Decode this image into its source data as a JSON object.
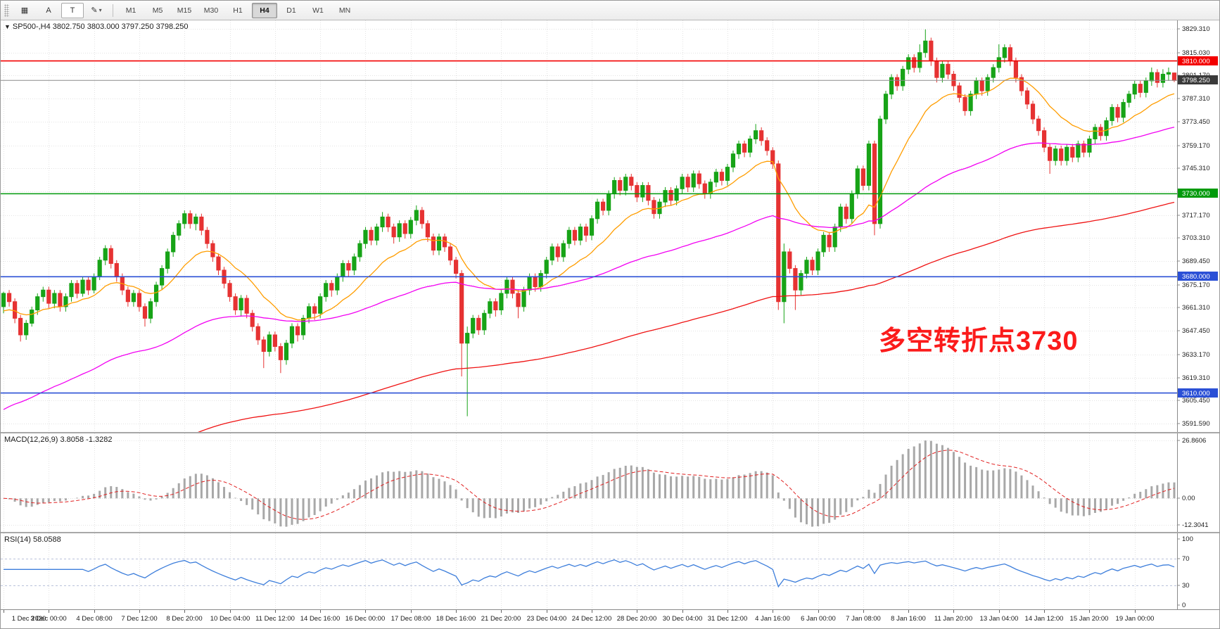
{
  "toolbar": {
    "tools": [
      {
        "name": "chart-window-tool",
        "glyph": "▦",
        "boxed": false,
        "caret": false
      },
      {
        "name": "annotation-tool",
        "glyph": "A",
        "boxed": false,
        "caret": false
      },
      {
        "name": "text-label-tool",
        "glyph": "T",
        "boxed": true,
        "caret": false
      },
      {
        "name": "draw-tools",
        "glyph": "✎",
        "boxed": false,
        "caret": true
      }
    ],
    "timeframes": [
      "M1",
      "M5",
      "M15",
      "M30",
      "H1",
      "H4",
      "D1",
      "W1",
      "MN"
    ],
    "active_timeframe": "H4"
  },
  "chart_data": {
    "type": "candlestick",
    "title": "SP500-,H4  3802.750 3803.000 3797.250 3798.250",
    "bars_per_label": 8,
    "x_labels": [
      "1 Dec 2020",
      "3 Dec 00:00",
      "4 Dec 08:00",
      "7 Dec 12:00",
      "8 Dec 20:00",
      "10 Dec 04:00",
      "11 Dec 12:00",
      "14 Dec 16:00",
      "16 Dec 00:00",
      "17 Dec 08:00",
      "18 Dec 16:00",
      "21 Dec 20:00",
      "23 Dec 04:00",
      "24 Dec 12:00",
      "28 Dec 20:00",
      "30 Dec 04:00",
      "31 Dec 12:00",
      "4 Jan 16:00",
      "6 Jan 00:00",
      "7 Jan 08:00",
      "8 Jan 16:00",
      "11 Jan 20:00",
      "13 Jan 04:00",
      "14 Jan 12:00",
      "15 Jan 20:00",
      "19 Jan 00:00"
    ],
    "price_axis_labels": [
      "3829.310",
      "3815.030",
      "3801.170",
      "3787.310",
      "3773.450",
      "3759.170",
      "3745.310",
      "3731.450",
      "3717.170",
      "3703.310",
      "3689.450",
      "3675.170",
      "3661.310",
      "3647.450",
      "3633.170",
      "3619.310",
      "3605.450",
      "3591.590"
    ],
    "candles": [
      [
        3662,
        3671,
        3658,
        3670
      ],
      [
        3670,
        3672,
        3662,
        3665
      ],
      [
        3665,
        3667,
        3652,
        3655
      ],
      [
        3655,
        3657,
        3641,
        3645
      ],
      [
        3645,
        3654,
        3642,
        3652
      ],
      [
        3652,
        3662,
        3650,
        3660
      ],
      [
        3660,
        3670,
        3657,
        3668
      ],
      [
        3668,
        3674,
        3665,
        3672
      ],
      [
        3672,
        3674,
        3661,
        3664
      ],
      [
        3664,
        3672,
        3661,
        3670
      ],
      [
        3670,
        3672,
        3659,
        3662
      ],
      [
        3662,
        3670,
        3659,
        3668
      ],
      [
        3668,
        3678,
        3665,
        3676
      ],
      [
        3676,
        3678,
        3667,
        3670
      ],
      [
        3670,
        3680,
        3668,
        3678
      ],
      [
        3678,
        3680,
        3669,
        3672
      ],
      [
        3672,
        3682,
        3670,
        3680
      ],
      [
        3680,
        3692,
        3678,
        3690
      ],
      [
        3690,
        3699,
        3687,
        3697
      ],
      [
        3697,
        3699,
        3685,
        3688
      ],
      [
        3688,
        3690,
        3677,
        3680
      ],
      [
        3680,
        3682,
        3669,
        3672
      ],
      [
        3672,
        3674,
        3662,
        3665
      ],
      [
        3665,
        3672,
        3662,
        3670
      ],
      [
        3670,
        3672,
        3659,
        3662
      ],
      [
        3662,
        3664,
        3650,
        3655
      ],
      [
        3655,
        3667,
        3652,
        3665
      ],
      [
        3665,
        3677,
        3662,
        3675
      ],
      [
        3675,
        3687,
        3672,
        3685
      ],
      [
        3685,
        3697,
        3682,
        3695
      ],
      [
        3695,
        3707,
        3692,
        3705
      ],
      [
        3705,
        3714,
        3702,
        3712
      ],
      [
        3712,
        3720,
        3709,
        3718
      ],
      [
        3718,
        3720,
        3709,
        3712
      ],
      [
        3712,
        3718,
        3708,
        3716
      ],
      [
        3716,
        3718,
        3705,
        3708
      ],
      [
        3708,
        3710,
        3697,
        3700
      ],
      [
        3700,
        3702,
        3689,
        3692
      ],
      [
        3692,
        3694,
        3681,
        3684
      ],
      [
        3684,
        3686,
        3673,
        3676
      ],
      [
        3676,
        3678,
        3665,
        3668
      ],
      [
        3668,
        3670,
        3657,
        3660
      ],
      [
        3660,
        3669,
        3656,
        3667
      ],
      [
        3667,
        3669,
        3655,
        3658
      ],
      [
        3658,
        3660,
        3647,
        3650
      ],
      [
        3650,
        3652,
        3639,
        3642
      ],
      [
        3642,
        3644,
        3625,
        3635
      ],
      [
        3635,
        3647,
        3632,
        3645
      ],
      [
        3645,
        3647,
        3635,
        3638
      ],
      [
        3638,
        3640,
        3622,
        3630
      ],
      [
        3630,
        3642,
        3627,
        3640
      ],
      [
        3640,
        3652,
        3637,
        3650
      ],
      [
        3650,
        3652,
        3641,
        3645
      ],
      [
        3645,
        3657,
        3642,
        3655
      ],
      [
        3655,
        3664,
        3652,
        3662
      ],
      [
        3662,
        3664,
        3654,
        3658
      ],
      [
        3658,
        3670,
        3655,
        3668
      ],
      [
        3668,
        3678,
        3665,
        3676
      ],
      [
        3676,
        3678,
        3668,
        3672
      ],
      [
        3672,
        3682,
        3669,
        3680
      ],
      [
        3680,
        3690,
        3677,
        3688
      ],
      [
        3688,
        3690,
        3680,
        3684
      ],
      [
        3684,
        3694,
        3681,
        3692
      ],
      [
        3692,
        3702,
        3689,
        3700
      ],
      [
        3700,
        3710,
        3697,
        3708
      ],
      [
        3708,
        3710,
        3699,
        3702
      ],
      [
        3702,
        3712,
        3699,
        3710
      ],
      [
        3710,
        3719,
        3707,
        3716
      ],
      [
        3716,
        3718,
        3707,
        3710
      ],
      [
        3710,
        3712,
        3700,
        3704
      ],
      [
        3704,
        3714,
        3701,
        3712
      ],
      [
        3712,
        3714,
        3703,
        3706
      ],
      [
        3706,
        3716,
        3703,
        3714
      ],
      [
        3714,
        3723,
        3711,
        3720
      ],
      [
        3720,
        3722,
        3709,
        3712
      ],
      [
        3712,
        3714,
        3701,
        3704
      ],
      [
        3704,
        3706,
        3693,
        3696
      ],
      [
        3696,
        3706,
        3693,
        3704
      ],
      [
        3704,
        3706,
        3695,
        3698
      ],
      [
        3698,
        3700,
        3687,
        3690
      ],
      [
        3690,
        3692,
        3679,
        3682
      ],
      [
        3682,
        3684,
        3620,
        3640
      ],
      [
        3640,
        3650,
        3596,
        3646
      ],
      [
        3646,
        3657,
        3643,
        3655
      ],
      [
        3655,
        3657,
        3645,
        3648
      ],
      [
        3648,
        3660,
        3645,
        3658
      ],
      [
        3658,
        3667,
        3655,
        3665
      ],
      [
        3665,
        3667,
        3656,
        3660
      ],
      [
        3660,
        3672,
        3657,
        3670
      ],
      [
        3670,
        3680,
        3667,
        3678
      ],
      [
        3678,
        3680,
        3667,
        3670
      ],
      [
        3670,
        3672,
        3655,
        3662
      ],
      [
        3662,
        3674,
        3659,
        3672
      ],
      [
        3672,
        3682,
        3669,
        3680
      ],
      [
        3680,
        3682,
        3671,
        3674
      ],
      [
        3674,
        3684,
        3671,
        3682
      ],
      [
        3682,
        3692,
        3679,
        3690
      ],
      [
        3690,
        3700,
        3687,
        3698
      ],
      [
        3698,
        3700,
        3689,
        3692
      ],
      [
        3692,
        3702,
        3689,
        3700
      ],
      [
        3700,
        3710,
        3697,
        3708
      ],
      [
        3708,
        3710,
        3699,
        3702
      ],
      [
        3702,
        3712,
        3699,
        3710
      ],
      [
        3710,
        3712,
        3701,
        3705
      ],
      [
        3705,
        3717,
        3702,
        3715
      ],
      [
        3715,
        3727,
        3712,
        3725
      ],
      [
        3725,
        3727,
        3717,
        3720
      ],
      [
        3720,
        3732,
        3717,
        3730
      ],
      [
        3730,
        3740,
        3727,
        3738
      ],
      [
        3738,
        3740,
        3729,
        3732
      ],
      [
        3732,
        3742,
        3729,
        3740
      ],
      [
        3740,
        3742,
        3732,
        3735
      ],
      [
        3735,
        3737,
        3725,
        3728
      ],
      [
        3728,
        3737,
        3725,
        3735
      ],
      [
        3735,
        3737,
        3723,
        3726
      ],
      [
        3726,
        3728,
        3715,
        3718
      ],
      [
        3718,
        3727,
        3715,
        3725
      ],
      [
        3725,
        3734,
        3722,
        3732
      ],
      [
        3732,
        3734,
        3723,
        3726
      ],
      [
        3726,
        3735,
        3723,
        3733
      ],
      [
        3733,
        3742,
        3730,
        3740
      ],
      [
        3740,
        3742,
        3731,
        3734
      ],
      [
        3734,
        3744,
        3731,
        3742
      ],
      [
        3742,
        3744,
        3733,
        3736
      ],
      [
        3736,
        3738,
        3727,
        3730
      ],
      [
        3730,
        3739,
        3727,
        3737
      ],
      [
        3737,
        3745,
        3734,
        3743
      ],
      [
        3743,
        3745,
        3735,
        3738
      ],
      [
        3738,
        3748,
        3735,
        3746
      ],
      [
        3746,
        3756,
        3743,
        3754
      ],
      [
        3754,
        3762,
        3751,
        3760
      ],
      [
        3760,
        3762,
        3752,
        3755
      ],
      [
        3755,
        3765,
        3752,
        3763
      ],
      [
        3763,
        3772,
        3760,
        3768
      ],
      [
        3768,
        3770,
        3759,
        3762
      ],
      [
        3762,
        3764,
        3753,
        3756
      ],
      [
        3756,
        3758,
        3745,
        3748
      ],
      [
        3748,
        3750,
        3660,
        3665
      ],
      [
        3665,
        3700,
        3652,
        3695
      ],
      [
        3695,
        3697,
        3682,
        3685
      ],
      [
        3685,
        3687,
        3660,
        3672
      ],
      [
        3672,
        3684,
        3669,
        3682
      ],
      [
        3682,
        3692,
        3679,
        3690
      ],
      [
        3690,
        3692,
        3681,
        3684
      ],
      [
        3684,
        3697,
        3681,
        3695
      ],
      [
        3695,
        3707,
        3692,
        3705
      ],
      [
        3705,
        3707,
        3695,
        3698
      ],
      [
        3698,
        3712,
        3695,
        3710
      ],
      [
        3710,
        3724,
        3707,
        3722
      ],
      [
        3722,
        3724,
        3712,
        3715
      ],
      [
        3715,
        3732,
        3712,
        3730
      ],
      [
        3730,
        3747,
        3727,
        3745
      ],
      [
        3745,
        3747,
        3732,
        3735
      ],
      [
        3735,
        3762,
        3732,
        3760
      ],
      [
        3760,
        3762,
        3705,
        3712
      ],
      [
        3712,
        3777,
        3709,
        3775
      ],
      [
        3775,
        3792,
        3772,
        3790
      ],
      [
        3790,
        3802,
        3787,
        3800
      ],
      [
        3800,
        3802,
        3792,
        3795
      ],
      [
        3795,
        3807,
        3792,
        3805
      ],
      [
        3805,
        3814,
        3802,
        3812
      ],
      [
        3812,
        3814,
        3803,
        3806
      ],
      [
        3806,
        3820,
        3803,
        3815
      ],
      [
        3815,
        3829,
        3812,
        3822
      ],
      [
        3822,
        3824,
        3807,
        3810
      ],
      [
        3810,
        3812,
        3797,
        3800
      ],
      [
        3800,
        3810,
        3797,
        3808
      ],
      [
        3808,
        3810,
        3799,
        3802
      ],
      [
        3802,
        3804,
        3792,
        3795
      ],
      [
        3795,
        3797,
        3785,
        3788
      ],
      [
        3788,
        3790,
        3777,
        3780
      ],
      [
        3780,
        3792,
        3777,
        3790
      ],
      [
        3790,
        3800,
        3787,
        3798
      ],
      [
        3798,
        3800,
        3789,
        3792
      ],
      [
        3792,
        3802,
        3789,
        3800
      ],
      [
        3800,
        3808,
        3797,
        3806
      ],
      [
        3806,
        3820,
        3803,
        3812
      ],
      [
        3812,
        3820,
        3809,
        3818
      ],
      [
        3818,
        3820,
        3807,
        3810
      ],
      [
        3810,
        3812,
        3797,
        3800
      ],
      [
        3800,
        3802,
        3789,
        3792
      ],
      [
        3792,
        3794,
        3781,
        3784
      ],
      [
        3784,
        3786,
        3772,
        3775
      ],
      [
        3775,
        3777,
        3765,
        3768
      ],
      [
        3768,
        3770,
        3755,
        3758
      ],
      [
        3758,
        3760,
        3742,
        3750
      ],
      [
        3750,
        3759,
        3747,
        3757
      ],
      [
        3757,
        3759,
        3747,
        3750
      ],
      [
        3750,
        3760,
        3747,
        3758
      ],
      [
        3758,
        3760,
        3749,
        3752
      ],
      [
        3752,
        3762,
        3749,
        3760
      ],
      [
        3760,
        3762,
        3752,
        3755
      ],
      [
        3755,
        3765,
        3752,
        3763
      ],
      [
        3763,
        3772,
        3760,
        3770
      ],
      [
        3770,
        3772,
        3762,
        3765
      ],
      [
        3765,
        3776,
        3762,
        3774
      ],
      [
        3774,
        3784,
        3771,
        3782
      ],
      [
        3782,
        3784,
        3773,
        3776
      ],
      [
        3776,
        3787,
        3773,
        3785
      ],
      [
        3785,
        3792,
        3782,
        3790
      ],
      [
        3790,
        3798,
        3787,
        3796
      ],
      [
        3796,
        3798,
        3788,
        3791
      ],
      [
        3791,
        3800,
        3788,
        3798
      ],
      [
        3798,
        3806,
        3795,
        3803
      ],
      [
        3803,
        3805,
        3794,
        3797
      ],
      [
        3797,
        3805,
        3794,
        3802
      ],
      [
        3802,
        3806,
        3798,
        3803
      ],
      [
        3802.75,
        3803,
        3797.25,
        3798.25
      ]
    ],
    "moving_averages": [
      {
        "name": "ma-fast",
        "color": "#ff9d00",
        "alpha": 0.12,
        "seed": 3658
      },
      {
        "name": "ma-medium",
        "color": "#f200f2",
        "alpha": 0.028,
        "seed": 3598
      },
      {
        "name": "ma-slow",
        "color": "#ef1212",
        "alpha": 0.011,
        "seed": 3542
      }
    ],
    "hlines": [
      {
        "value": 3810.0,
        "label": "3810.000",
        "color": "#f30000"
      },
      {
        "value": 3730.0,
        "label": "3730.000",
        "color": "#009a0b"
      },
      {
        "value": 3680.0,
        "label": "3680.000",
        "color": "#2b50d6"
      },
      {
        "value": 3610.0,
        "label": "3610.000",
        "color": "#2b50d6"
      }
    ],
    "current_price": {
      "value": 3798.25,
      "label": "3798.250",
      "line_color": "#8c8c8c",
      "badge_color": "#3a3a3a"
    },
    "annotation": {
      "text": "多空转折点3730",
      "color": "#fb1b1b"
    },
    "macd": {
      "label": "MACD(12,26,9) 3.8058 -1.3282",
      "fast": 12,
      "slow": 26,
      "signal": 9,
      "axis_labels": [
        "26.8606",
        "0.00",
        "-12.3041"
      ],
      "hist_color": "#a8a8a8",
      "signal_color": "#e12020"
    },
    "rsi": {
      "label": "RSI(14) 58.0588",
      "period": 14,
      "axis_labels": [
        "100",
        "70",
        "30",
        "0"
      ],
      "levels": [
        70,
        30
      ],
      "line_color": "#3d7edb",
      "level_color": "#b9c2da"
    },
    "colors": {
      "bull": "#17a317",
      "bear": "#e63232",
      "grid": "#e3e3e3",
      "scale_text": "#1c1c1c",
      "border": "#8a8a8a"
    }
  }
}
